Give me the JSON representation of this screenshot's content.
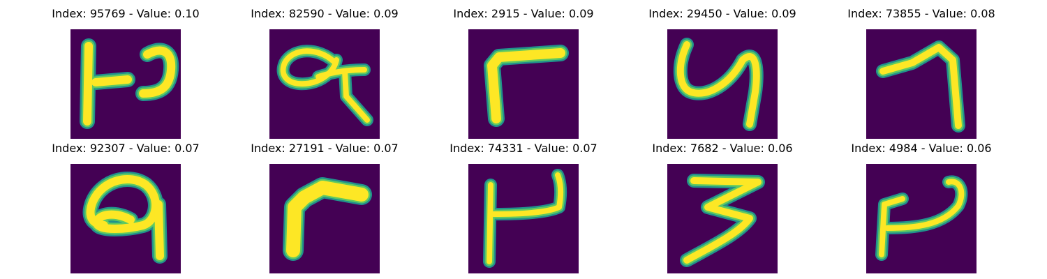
{
  "colors": {
    "background": "#440154",
    "stroke_core": "#fde725",
    "stroke_mid": "#5ec962",
    "stroke_edge": "#21918c"
  },
  "panels": [
    {
      "title": "Index: 95769 - Value: 0.10",
      "glyph": "glyph-1"
    },
    {
      "title": "Index: 82590 - Value: 0.09",
      "glyph": "glyph-2"
    },
    {
      "title": "Index: 2915 - Value: 0.09",
      "glyph": "glyph-3"
    },
    {
      "title": "Index: 29450 - Value: 0.09",
      "glyph": "glyph-4"
    },
    {
      "title": "Index: 73855 - Value: 0.08",
      "glyph": "glyph-5"
    },
    {
      "title": "Index: 92307 - Value: 0.07",
      "glyph": "glyph-6"
    },
    {
      "title": "Index: 27191 - Value: 0.07",
      "glyph": "glyph-7"
    },
    {
      "title": "Index: 74331 - Value: 0.07",
      "glyph": "glyph-8"
    },
    {
      "title": "Index: 7682 - Value: 0.06",
      "glyph": "glyph-9"
    },
    {
      "title": "Index: 4984 - Value: 0.06",
      "glyph": "glyph-10"
    }
  ]
}
